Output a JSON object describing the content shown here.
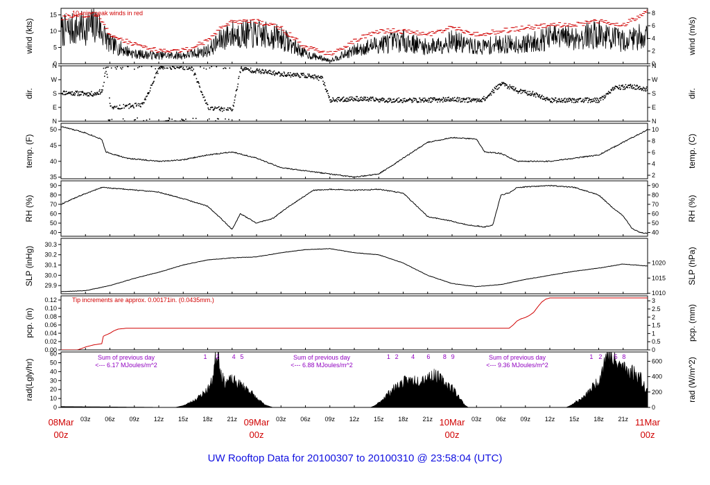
{
  "footer": "UW Rooftop Data for 20100307  to  20100310 @ 23:58:04  (UTC)",
  "colors": {
    "line": "#000000",
    "accent": "#d00000",
    "purple": "#9000c0",
    "footer": "#1010e0"
  },
  "chart_data": [
    {
      "type": "line",
      "id": "wind",
      "ylabel_left": "wind (kts)",
      "ylabel_right": "wind (m/s)",
      "ylim": [
        0,
        17
      ],
      "yticks_left": [
        0,
        5,
        10,
        15
      ],
      "yticks_right": [
        0,
        2,
        4,
        6,
        8
      ],
      "annotation": "10 min. peak winds in red",
      "series": [
        {
          "role": "wind",
          "x_hours": [
            0,
            3,
            4.5,
            6,
            9,
            12,
            15,
            18,
            20,
            21,
            24,
            27,
            30,
            33,
            36,
            39,
            42,
            45,
            48,
            51,
            54,
            57,
            60,
            63,
            66,
            69,
            72
          ],
          "y": [
            10,
            11,
            12,
            6,
            3,
            2.5,
            2.5,
            4,
            8,
            9,
            9,
            8,
            3,
            1,
            4,
            6,
            7,
            5,
            7,
            5,
            6,
            6,
            8,
            8,
            9,
            7,
            9
          ]
        },
        {
          "role": "peak",
          "x_hours": [
            0,
            3,
            4.5,
            6,
            9,
            12,
            15,
            18,
            20,
            21,
            24,
            27,
            30,
            33,
            36,
            39,
            42,
            45,
            48,
            51,
            54,
            57,
            60,
            63,
            66,
            69,
            72
          ],
          "y": [
            14,
            15,
            15,
            9,
            6,
            4,
            4,
            7,
            12,
            13,
            13,
            11,
            5,
            3,
            7,
            10,
            10,
            9,
            11,
            9,
            10,
            11,
            12,
            12,
            13,
            12,
            16
          ]
        }
      ]
    },
    {
      "type": "scatter",
      "id": "dir",
      "ylabel_left": "dir.",
      "ylabel_right": "dir.",
      "ylim": [
        0,
        360
      ],
      "yticks_left": [
        "N",
        "E",
        "S",
        "W",
        "N"
      ],
      "yticks_right": [
        "N",
        "E",
        "S",
        "W",
        "N"
      ],
      "x_hours": [
        0,
        2,
        4,
        5,
        5.5,
        6,
        8,
        10,
        12,
        14,
        16,
        18,
        20,
        21,
        22,
        24,
        27,
        30,
        32,
        33,
        36,
        40,
        44,
        48,
        51,
        52,
        53,
        54,
        56,
        58,
        60,
        62,
        64,
        66,
        68,
        70,
        72
      ],
      "y": [
        190,
        185,
        180,
        200,
        350,
        90,
        100,
        110,
        350,
        355,
        350,
        90,
        80,
        80,
        345,
        330,
        310,
        300,
        280,
        140,
        150,
        140,
        140,
        145,
        140,
        150,
        200,
        250,
        200,
        180,
        140,
        140,
        140,
        140,
        220,
        230,
        210
      ]
    },
    {
      "type": "line",
      "id": "temp",
      "ylabel_left": "temp. (F)",
      "ylabel_right": "temp. (C)",
      "ylim": [
        34.5,
        52
      ],
      "yticks_left": [
        35,
        40,
        45,
        50
      ],
      "yticks_right": [
        2,
        4,
        6,
        8,
        10
      ],
      "x_hours": [
        0,
        3,
        5,
        5.5,
        8,
        12,
        15,
        18,
        21,
        24,
        27,
        30,
        33,
        36,
        39,
        42,
        45,
        48,
        51,
        52,
        54,
        56,
        60,
        63,
        66,
        69,
        72
      ],
      "y": [
        51,
        49,
        47,
        43,
        41,
        40,
        40.5,
        42,
        43,
        41,
        38,
        37,
        36,
        35,
        36,
        41,
        46,
        47.5,
        47,
        43,
        42.5,
        40,
        40,
        41,
        42,
        46,
        50
      ]
    },
    {
      "type": "line",
      "id": "rh",
      "ylabel_left": "RH (%)",
      "ylabel_right": "RH (%)",
      "ylim": [
        36,
        95
      ],
      "yticks_left": [
        40,
        50,
        60,
        70,
        80,
        90
      ],
      "yticks_right": [
        40,
        50,
        60,
        70,
        80,
        90
      ],
      "x_hours": [
        0,
        2,
        5,
        8,
        12,
        15,
        18,
        20,
        21,
        22,
        24,
        26,
        28,
        31,
        33,
        36,
        39,
        42,
        45,
        48,
        50,
        52,
        53,
        54,
        55,
        56,
        60,
        63,
        66,
        68,
        69,
        70,
        71,
        72
      ],
      "y": [
        70,
        78,
        88,
        86,
        83,
        76,
        68,
        52,
        43,
        60,
        50,
        55,
        68,
        85,
        86,
        85,
        86,
        82,
        57,
        52,
        48,
        46,
        48,
        80,
        82,
        88,
        90,
        88,
        80,
        64,
        58,
        45,
        40,
        39
      ]
    },
    {
      "type": "line",
      "id": "slp",
      "ylabel_left": "SLP (inHg)",
      "ylabel_right": "SLP (hPa)",
      "ylim": [
        29.82,
        30.36
      ],
      "yticks_left": [
        29.9,
        30.0,
        30.1,
        30.2,
        30.3
      ],
      "yticks_right": [
        1010,
        1015,
        1020
      ],
      "x_hours": [
        0,
        3,
        6,
        9,
        12,
        15,
        18,
        21,
        24,
        27,
        30,
        33,
        36,
        39,
        42,
        45,
        48,
        51,
        54,
        57,
        60,
        63,
        66,
        69,
        72
      ],
      "y": [
        29.84,
        29.85,
        29.9,
        29.97,
        30.03,
        30.1,
        30.15,
        30.17,
        30.18,
        30.22,
        30.25,
        30.26,
        30.22,
        30.2,
        30.12,
        30.0,
        29.92,
        29.89,
        29.91,
        29.96,
        30.0,
        30.04,
        30.07,
        30.11,
        30.09
      ]
    },
    {
      "type": "line",
      "id": "pcp",
      "ylabel_left": "pcp. (in)",
      "ylabel_right": "pcp. (mm)",
      "ylim": [
        0,
        0.13
      ],
      "yticks_left": [
        0.0,
        0.02,
        0.04,
        0.06,
        0.08,
        0.1,
        0.12
      ],
      "yticks_right": [
        "0",
        "0.5",
        "1",
        "1.5",
        "2",
        "2.5",
        "3"
      ],
      "annotation": "Tip increments are approx. 0.00171in. (0.0435mm.)",
      "x_hours": [
        0,
        2,
        2.5,
        3,
        4,
        5,
        5.2,
        6,
        6.5,
        7,
        8,
        24,
        48,
        55,
        55.5,
        56,
        56.5,
        57,
        57.5,
        58,
        58.5,
        59,
        59.5,
        60,
        72
      ],
      "y": [
        0,
        0,
        0.003,
        0.007,
        0.012,
        0.015,
        0.033,
        0.04,
        0.046,
        0.05,
        0.052,
        0.052,
        0.052,
        0.052,
        0.06,
        0.07,
        0.075,
        0.078,
        0.083,
        0.09,
        0.103,
        0.115,
        0.122,
        0.125,
        0.125
      ]
    },
    {
      "type": "area",
      "id": "rad",
      "ylabel_left": "rad(Lgly/hr)",
      "ylabel_right": "rad (W/m^2)",
      "ylim": [
        0,
        62
      ],
      "yticks_left": [
        0,
        10,
        20,
        30,
        40,
        50,
        60
      ],
      "yticks_right": [
        0,
        200,
        400,
        600
      ],
      "annotations": [
        {
          "line1": "Sum of previous day",
          "line2": "<--- 6.17 MJoules/m^2",
          "x_hours": 8,
          "markers": [
            "1",
            "2",
            "4",
            "5"
          ],
          "marker_hours": [
            17.7,
            19.2,
            21.2,
            22.2
          ]
        },
        {
          "line1": "Sum of previous day",
          "line2": "<--- 6.88 MJoules/m^2",
          "x_hours": 32,
          "markers": [
            "1",
            "2",
            "4",
            "6",
            "8",
            "9"
          ],
          "marker_hours": [
            40.2,
            41.2,
            43.2,
            45.1,
            47.1,
            48.1
          ]
        },
        {
          "line1": "Sum of previous day",
          "line2": "<--- 9.36 MJoules/m^2",
          "x_hours": 56,
          "markers": [
            "1",
            "2",
            "5",
            "8"
          ],
          "marker_hours": [
            65.1,
            66.2,
            68.1,
            69.1
          ]
        }
      ],
      "x_hours": [
        0,
        14,
        15,
        16,
        17,
        18,
        18.5,
        19,
        19.3,
        19.6,
        20,
        21,
        22,
        23,
        24,
        25,
        26,
        38,
        38.5,
        39,
        40,
        41,
        42,
        43,
        44,
        45,
        46,
        47,
        48,
        49,
        49.5,
        50,
        62,
        62.5,
        63,
        64,
        64.5,
        65,
        66,
        67,
        67.5,
        68,
        69,
        70,
        71,
        72
      ],
      "y": [
        1,
        0,
        2,
        6,
        12,
        20,
        28,
        55,
        65,
        40,
        28,
        30,
        25,
        20,
        10,
        3,
        0,
        0,
        2,
        5,
        14,
        22,
        28,
        30,
        31,
        34,
        35,
        28,
        22,
        10,
        3,
        0,
        0,
        2,
        5,
        10,
        14,
        20,
        30,
        60,
        55,
        50,
        45,
        40,
        35,
        18
      ]
    }
  ],
  "x_axis": {
    "minor_ticks": [
      "03z",
      "06z",
      "09z",
      "12z",
      "15z",
      "18z",
      "21z"
    ],
    "major_ticks": [
      {
        "line1": "08Mar",
        "line2": "00z"
      },
      {
        "line1": "09Mar",
        "line2": "00z"
      },
      {
        "line1": "10Mar",
        "line2": "00z"
      },
      {
        "line1": "11Mar",
        "line2": "00z"
      }
    ],
    "range_hours": [
      0,
      72
    ]
  }
}
